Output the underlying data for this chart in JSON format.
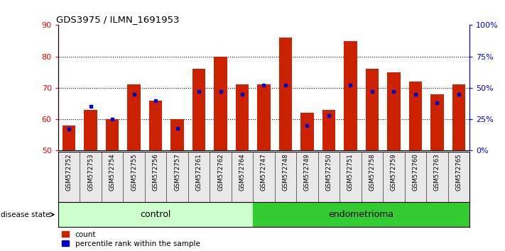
{
  "title": "GDS3975 / ILMN_1691953",
  "samples": [
    "GSM572752",
    "GSM572753",
    "GSM572754",
    "GSM572755",
    "GSM572756",
    "GSM572757",
    "GSM572761",
    "GSM572762",
    "GSM572764",
    "GSM572747",
    "GSM572748",
    "GSM572749",
    "GSM572750",
    "GSM572751",
    "GSM572758",
    "GSM572759",
    "GSM572760",
    "GSM572763",
    "GSM572765"
  ],
  "counts": [
    58,
    63,
    60,
    71,
    66,
    60,
    76,
    80,
    71,
    71,
    86,
    62,
    63,
    85,
    76,
    75,
    72,
    68,
    71
  ],
  "percentiles": [
    17,
    35,
    25,
    45,
    40,
    18,
    47,
    47,
    45,
    52,
    52,
    20,
    28,
    52,
    47,
    47,
    45,
    38,
    45
  ],
  "control_color": "#ccffcc",
  "endometrioma_color": "#33cc33",
  "bar_color": "#cc2200",
  "percentile_color": "#0000cc",
  "ylim_left": [
    50,
    90
  ],
  "ylim_right": [
    0,
    100
  ],
  "yticks_left": [
    50,
    60,
    70,
    80,
    90
  ],
  "yticks_right": [
    0,
    25,
    50,
    75,
    100
  ],
  "ytick_labels_right": [
    "0%",
    "25%",
    "50%",
    "75%",
    "100%"
  ],
  "bg_color": "#e8e8e8",
  "plot_bg": "#ffffff",
  "n_control": 9,
  "n_endometrioma": 10
}
